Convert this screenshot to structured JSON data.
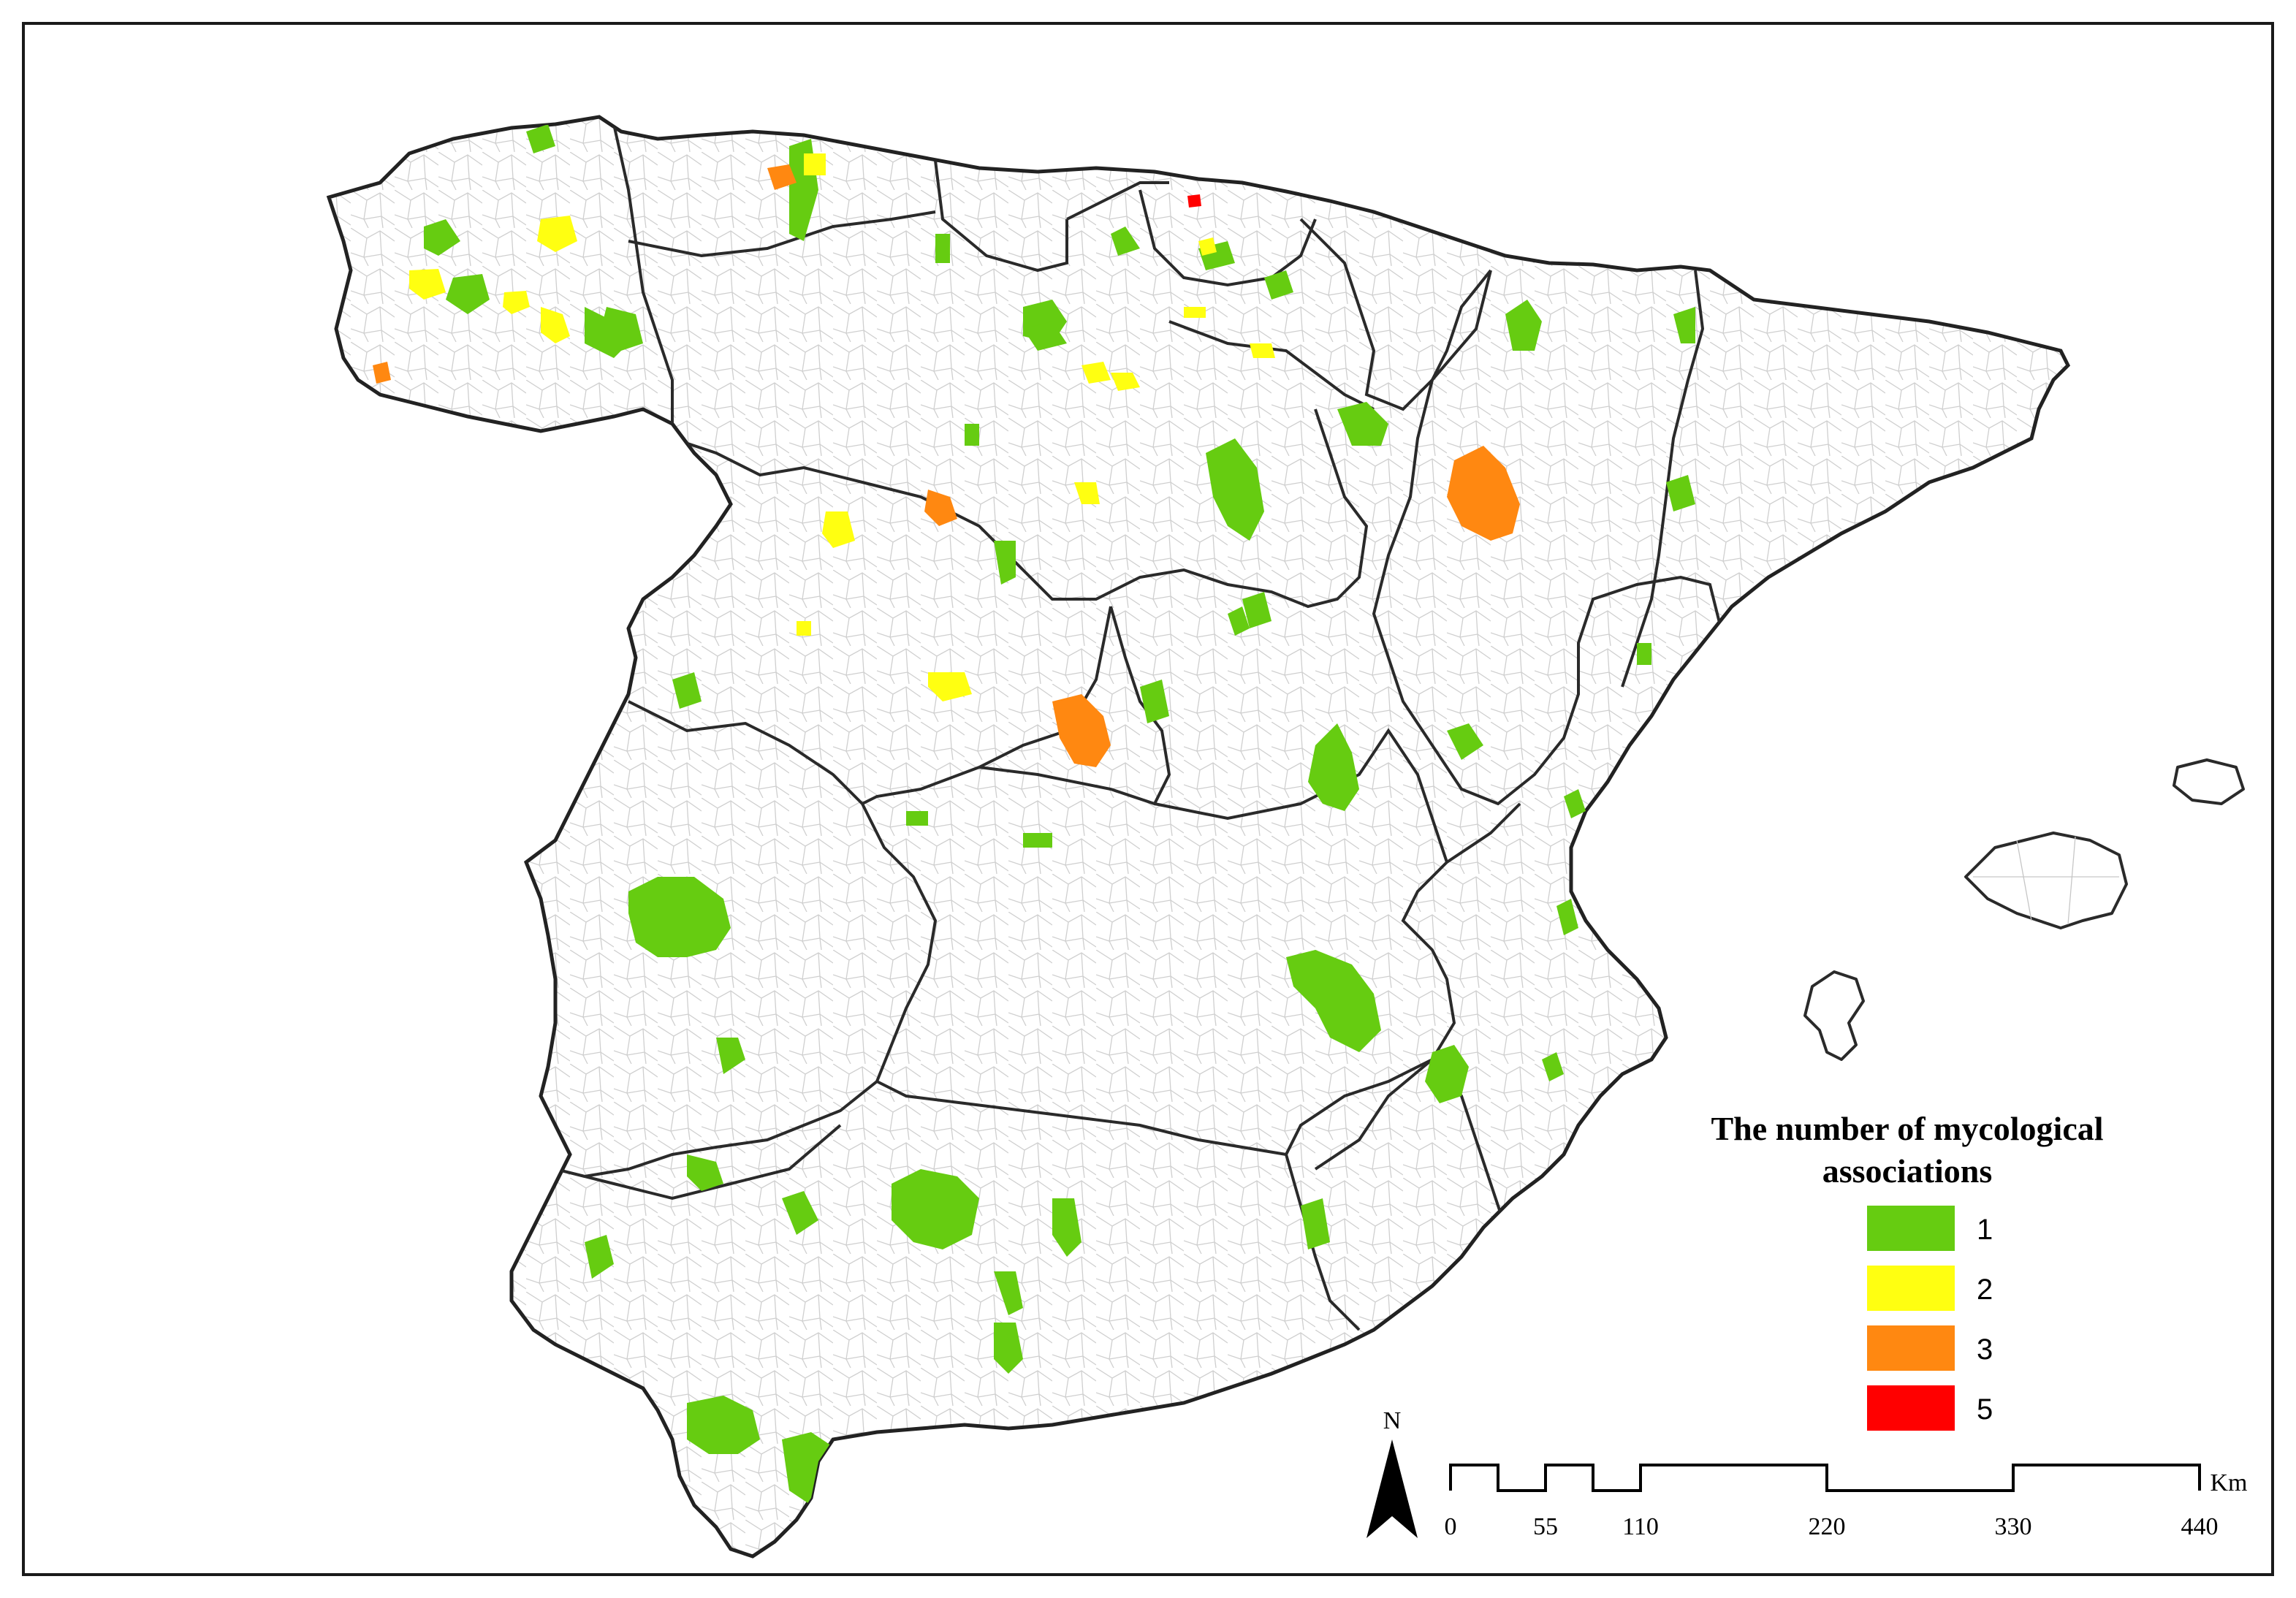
{
  "legend": {
    "title_line1": "The number of mycological",
    "title_line2": "associations",
    "items": [
      {
        "label": "1",
        "color": "#66cc11"
      },
      {
        "label": "2",
        "color": "#ffff11"
      },
      {
        "label": "3",
        "color": "#ff8811"
      },
      {
        "label": "5",
        "color": "#ff0000"
      }
    ]
  },
  "north_arrow": {
    "label": "N"
  },
  "scale_bar": {
    "unit": "Km",
    "ticks": [
      "0",
      "55",
      "110",
      "220",
      "330",
      "440"
    ]
  },
  "colors": {
    "one": "#66cc11",
    "two": "#ffff11",
    "three": "#ff8811",
    "five": "#ff0000",
    "boundary": "#2a2a2a",
    "municipality_lines": "#bdbdbd"
  }
}
